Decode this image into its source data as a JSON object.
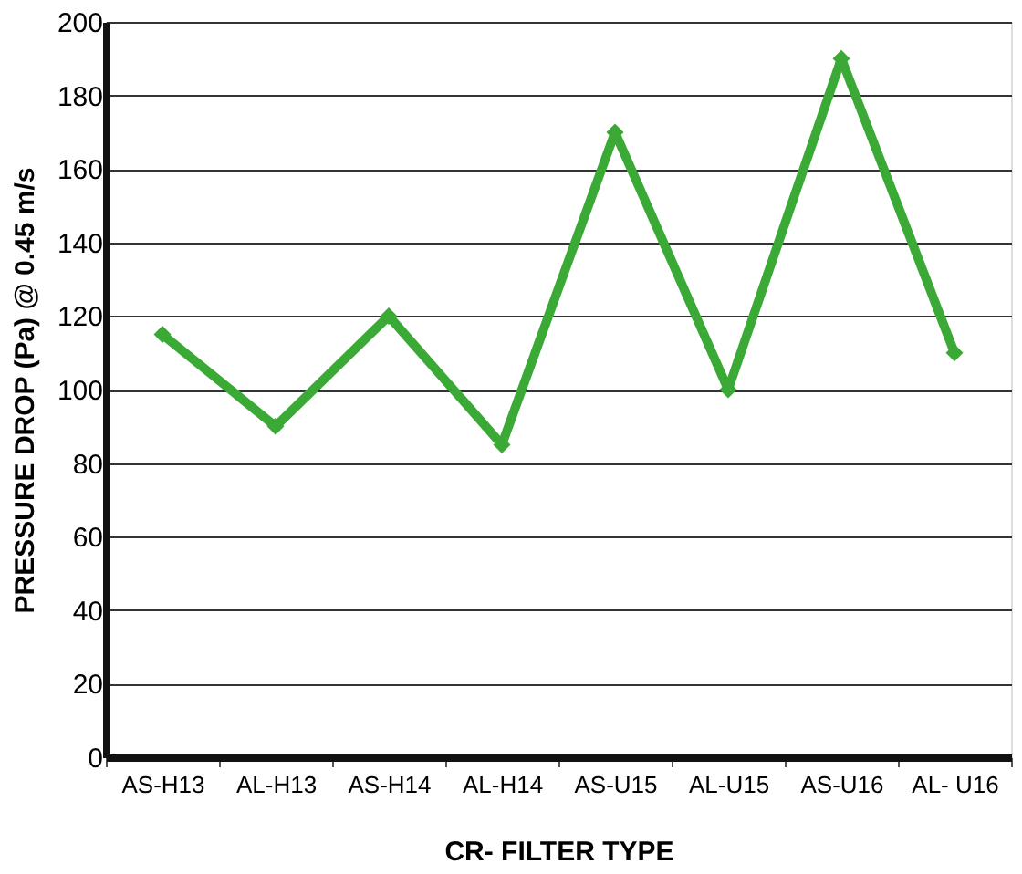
{
  "chart_data": {
    "type": "line",
    "xlabel": "CR- FILTER TYPE",
    "ylabel": "PRESSURE DROP (Pa) @ 0.45 m/s",
    "categories": [
      "AS-H13",
      "AL-H13",
      "AS-H14",
      "AL-H14",
      "AS-U15",
      "AL-U15",
      "AS-U16",
      "AL- U16"
    ],
    "series": [
      {
        "color": "#3aa935",
        "values": [
          115,
          90,
          120,
          85,
          170,
          100,
          190,
          110
        ]
      }
    ],
    "ylim": [
      0,
      200
    ],
    "yticks": [
      0,
      20,
      40,
      60,
      80,
      100,
      120,
      140,
      160,
      180,
      200
    ],
    "grid": "y",
    "marker": "diamond",
    "line_style": "solid",
    "legend": false
  }
}
